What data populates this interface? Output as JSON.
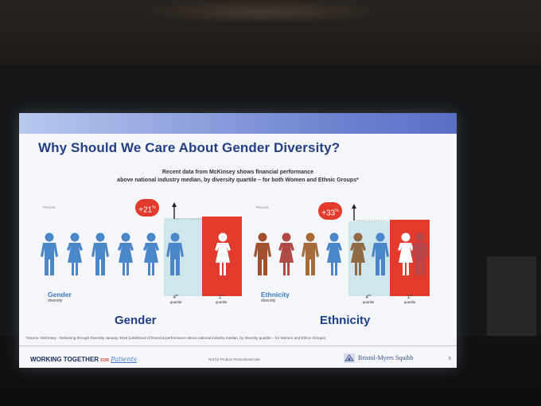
{
  "slide": {
    "title": "Why Should We Care About Gender Diversity?",
    "subtitle_line1": "Recent data from McKinsey shows financial performance",
    "subtitle_line2": "above national industry median, by diversity quartile – for both Women and Ethnic Groups*",
    "source": "*Source: McKinsey - Delivering through Diversity January 2018 (Likelihood of financial performance above national industry median, by diversity quartile – for Women and Ethnic Groups)",
    "footer": {
      "working": "WORKING TOGETHER",
      "for": "FOR",
      "patients": "Patients",
      "disclaimer": "Not for Product Promotional Use",
      "company": "Bristol-Myers Squibb",
      "page": "5"
    }
  },
  "panels": [
    {
      "id": "gender",
      "tiny_label": "Percent",
      "badge_value": "+21",
      "badge_unit": "%",
      "row_label": "Gender",
      "row_sub": "diversity",
      "quartile_4": "4",
      "quartile_4_sup": "th",
      "quartile_1": "1",
      "quartile_1_sup": "st",
      "quartile_word": "quartile",
      "big_label": "Gender",
      "big_label_color": "#1f3f8a"
    },
    {
      "id": "ethnicity",
      "tiny_label": "Percent",
      "badge_value": "+33",
      "badge_unit": "%",
      "row_label": "Ethnicity",
      "row_sub": "diversity",
      "quartile_4": "4",
      "quartile_4_sup": "th",
      "quartile_1": "1",
      "quartile_1_sup": "st",
      "quartile_word": "quartile",
      "big_label": "Ethnicity",
      "big_label_color": "#1f3f8a"
    }
  ],
  "colors": {
    "accent_red": "#e23b2d",
    "gender_blue": "#4a86c8",
    "title_blue": "#233f86"
  },
  "icons": {
    "person": "person-figure-icon",
    "arrow": "up-arrow-icon",
    "logo": "bms-logo-icon"
  }
}
